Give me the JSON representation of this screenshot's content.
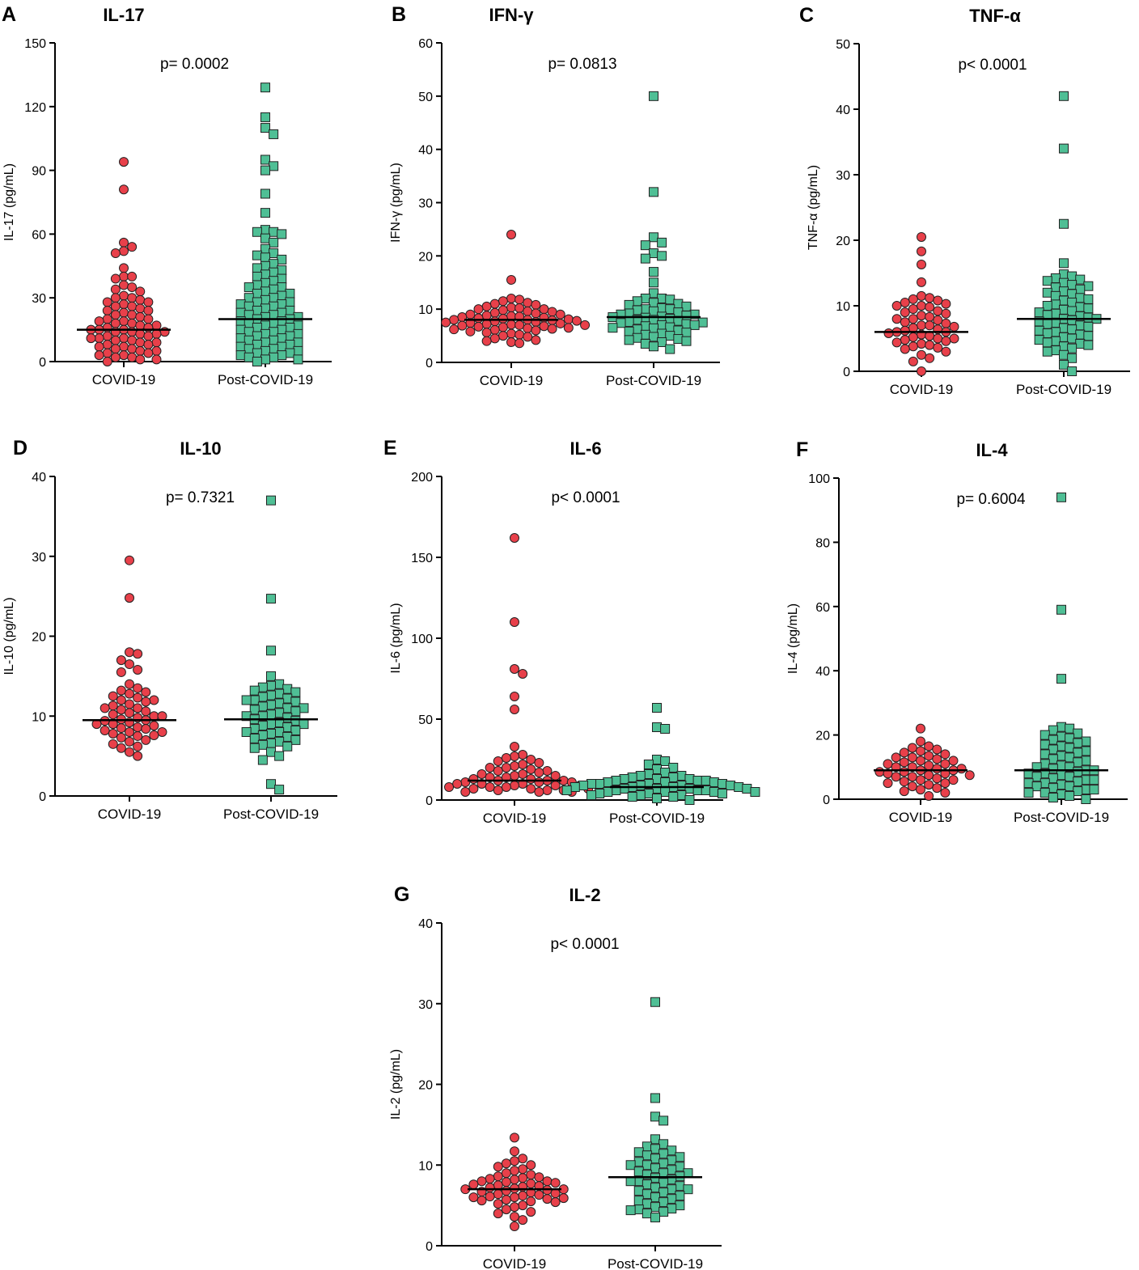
{
  "colors": {
    "covid_fill": "#e8404a",
    "postcovid_fill": "#4fbf95",
    "marker_stroke": "#222222",
    "axis": "#000000",
    "median_line": "#000000"
  },
  "markers": {
    "covid": "circle",
    "postcovid": "square"
  },
  "chart_data": [
    {
      "type": "scatter",
      "panel": "A",
      "title": "IL-17",
      "ylabel": "IL-17 (pg/mL)",
      "categories": [
        "COVID-19",
        "Post-COVID-19"
      ],
      "yticks": [
        "0",
        "30",
        "60",
        "90",
        "120",
        "150"
      ],
      "ylim": [
        0,
        150
      ],
      "p_value": "p= 0.0002",
      "medians": [
        15,
        20
      ],
      "series": [
        {
          "name": "COVID-19",
          "values": [
            94,
            81,
            56,
            54,
            52,
            51,
            44,
            40,
            40,
            39,
            36,
            35,
            34,
            33,
            31,
            30,
            30,
            29,
            28,
            28,
            27,
            26,
            26,
            25,
            24,
            24,
            23,
            22,
            22,
            21,
            20,
            20,
            19,
            19,
            18,
            18,
            17,
            17,
            16,
            16,
            15,
            15,
            15,
            14,
            14,
            14,
            13,
            13,
            12,
            12,
            11,
            11,
            11,
            10,
            10,
            9,
            9,
            8,
            8,
            7,
            7,
            6,
            6,
            5,
            5,
            4,
            4,
            3,
            3,
            2,
            2,
            1,
            1,
            0
          ]
        },
        {
          "name": "Post-COVID-19",
          "values": [
            129,
            115,
            110,
            107,
            95,
            92,
            90,
            79,
            70,
            62,
            61,
            61,
            60,
            58,
            56,
            53,
            51,
            50,
            49,
            48,
            46,
            45,
            44,
            43,
            42,
            41,
            40,
            39,
            38,
            37,
            36,
            35,
            35,
            34,
            33,
            32,
            32,
            31,
            30,
            30,
            29,
            28,
            28,
            27,
            27,
            26,
            26,
            25,
            24,
            24,
            23,
            23,
            22,
            22,
            21,
            21,
            20,
            20,
            19,
            19,
            18,
            18,
            17,
            17,
            16,
            16,
            15,
            15,
            14,
            14,
            13,
            13,
            12,
            12,
            11,
            11,
            10,
            10,
            9,
            9,
            8,
            8,
            7,
            7,
            6,
            6,
            5,
            5,
            4,
            4,
            3,
            3,
            2,
            2,
            1,
            1,
            0
          ]
        }
      ]
    },
    {
      "type": "scatter",
      "panel": "B",
      "title": "IFN-γ",
      "ylabel": "IFN-γ (pg/mL)",
      "categories": [
        "COVID-19",
        "Post-COVID-19"
      ],
      "yticks": [
        "0",
        "10",
        "20",
        "30",
        "40",
        "50",
        "60"
      ],
      "ylim": [
        0,
        60
      ],
      "p_value": "p= 0.0813",
      "medians": [
        8,
        8.5
      ],
      "series": [
        {
          "name": "COVID-19",
          "values": [
            24,
            15.5,
            12,
            11.8,
            11.5,
            11.2,
            11,
            10.8,
            10.5,
            10.3,
            10.2,
            10,
            10,
            9.8,
            9.6,
            9.5,
            9.3,
            9.2,
            9,
            9,
            8.8,
            8.7,
            8.6,
            8.5,
            8.4,
            8.3,
            8.2,
            8.1,
            8,
            8,
            7.9,
            7.8,
            7.7,
            7.6,
            7.5,
            7.4,
            7.3,
            7.2,
            7.1,
            7,
            7,
            6.9,
            6.8,
            6.7,
            6.6,
            6.5,
            6.4,
            6.3,
            6.2,
            6.1,
            6,
            5.8,
            5.6,
            5.4,
            5.2,
            5,
            4.8,
            4.5,
            4.2,
            4,
            3.8,
            3.6
          ]
        },
        {
          "name": "Post-COVID-19",
          "values": [
            50,
            32,
            23.5,
            22.5,
            22,
            20.5,
            20,
            19.5,
            17,
            15,
            13,
            12,
            12,
            11.8,
            11.5,
            11.2,
            11,
            10.8,
            10.5,
            10.2,
            10,
            10,
            9.8,
            9.6,
            9.4,
            9.2,
            9,
            9,
            8.8,
            8.6,
            8.5,
            8.4,
            8.2,
            8,
            8,
            7.8,
            7.6,
            7.5,
            7.4,
            7.2,
            7,
            7,
            6.8,
            6.6,
            6.5,
            6.4,
            6.2,
            6,
            5.8,
            5.6,
            5.4,
            5.2,
            5,
            4.8,
            4.6,
            4.4,
            4.2,
            4,
            3.8,
            3.5,
            3,
            2.5
          ]
        }
      ]
    },
    {
      "type": "scatter",
      "panel": "C",
      "title": "TNF-α",
      "ylabel": "TNF-α (pg/mL)",
      "categories": [
        "COVID-19",
        "Post-COVID-19"
      ],
      "yticks": [
        "0",
        "10",
        "20",
        "30",
        "40",
        "50"
      ],
      "ylim": [
        0,
        50
      ],
      "p_value": "p< 0.0001",
      "medians": [
        6,
        8
      ],
      "series": [
        {
          "name": "COVID-19",
          "values": [
            20.5,
            18.3,
            16.3,
            13.6,
            11.5,
            11.2,
            11,
            10.8,
            10.5,
            10.3,
            10,
            10,
            9.8,
            9.5,
            9.2,
            9,
            8.8,
            8.5,
            8.3,
            8,
            8,
            7.8,
            7.5,
            7.3,
            7,
            7,
            6.8,
            6.6,
            6.4,
            6.2,
            6,
            6,
            5.8,
            5.6,
            5.4,
            5.2,
            5,
            5,
            4.8,
            4.6,
            4.4,
            4.2,
            4,
            3.8,
            3.6,
            3.4,
            3,
            2.5,
            2,
            1.5,
            0
          ]
        },
        {
          "name": "Post-COVID-19",
          "values": [
            42,
            34,
            22.5,
            16.5,
            14.8,
            14.5,
            14.2,
            14,
            13.8,
            13.5,
            13.2,
            13,
            12.8,
            12.5,
            12.2,
            12,
            11.8,
            11.5,
            11.2,
            11,
            10.8,
            10.5,
            10.2,
            10,
            9.8,
            9.6,
            9.4,
            9.2,
            9,
            8.8,
            8.6,
            8.4,
            8.2,
            8,
            8,
            7.8,
            7.6,
            7.4,
            7.2,
            7,
            6.8,
            6.6,
            6.4,
            6.2,
            6,
            5.8,
            5.6,
            5.4,
            5.2,
            5,
            4.8,
            4.6,
            4.4,
            4.2,
            4,
            3.8,
            3.5,
            3.2,
            3,
            2.5,
            2,
            1,
            0
          ]
        }
      ]
    },
    {
      "type": "scatter",
      "panel": "D",
      "title": "IL-10",
      "ylabel": "IL-10 (pg/mL)",
      "categories": [
        "COVID-19",
        "Post-COVID-19"
      ],
      "yticks": [
        "0",
        "10",
        "20",
        "30",
        "40"
      ],
      "ylim": [
        0,
        40
      ],
      "p_value": "p= 0.7321",
      "medians": [
        9.5,
        9.6
      ],
      "series": [
        {
          "name": "COVID-19",
          "values": [
            29.5,
            24.8,
            18,
            17.8,
            17,
            16.5,
            15.8,
            15.5,
            14,
            13.5,
            13.2,
            13,
            12.8,
            12.5,
            12.3,
            12,
            12,
            11.8,
            11.5,
            11.3,
            11,
            11,
            10.8,
            10.6,
            10.4,
            10.2,
            10,
            10,
            9.8,
            9.6,
            9.5,
            9.4,
            9.2,
            9,
            9,
            8.8,
            8.6,
            8.5,
            8.4,
            8.2,
            8,
            8,
            7.8,
            7.6,
            7.5,
            7.3,
            7,
            6.8,
            6.5,
            6.2,
            6,
            5.5,
            5
          ]
        },
        {
          "name": "Post-COVID-19",
          "values": [
            37,
            24.7,
            18.2,
            15,
            14,
            13.8,
            13.6,
            13.4,
            13.2,
            13,
            12.8,
            12.6,
            12.4,
            12.2,
            12,
            12,
            11.8,
            11.6,
            11.4,
            11.2,
            11,
            11,
            10.8,
            10.6,
            10.4,
            10.2,
            10,
            10,
            9.8,
            9.6,
            9.4,
            9.2,
            9,
            9,
            8.8,
            8.6,
            8.4,
            8.2,
            8,
            8,
            7.8,
            7.6,
            7.4,
            7.2,
            7,
            6.8,
            6.6,
            6.4,
            6.2,
            6,
            5.5,
            5,
            4.5,
            1.5,
            0.8
          ]
        }
      ]
    },
    {
      "type": "scatter",
      "panel": "E",
      "title": "IL-6",
      "ylabel": "IL-6 (pg/mL)",
      "categories": [
        "COVID-19",
        "Post-COVID-19"
      ],
      "yticks": [
        "0",
        "50",
        "100",
        "150",
        "200"
      ],
      "ylim": [
        0,
        200
      ],
      "p_value": "p< 0.0001",
      "medians": [
        12,
        8
      ],
      "series": [
        {
          "name": "COVID-19",
          "values": [
            162,
            110,
            81,
            78,
            64,
            56,
            33,
            28,
            27,
            26,
            25,
            24,
            23,
            22,
            21,
            20,
            20,
            19,
            18,
            18,
            17,
            16,
            16,
            15,
            15,
            14,
            14,
            13,
            13,
            12,
            12,
            12,
            11,
            11,
            11,
            10,
            10,
            10,
            9,
            9,
            9,
            8,
            8,
            8,
            7,
            7,
            7,
            6,
            6,
            6,
            5,
            5,
            5
          ]
        },
        {
          "name": "Post-COVID-19",
          "values": [
            57,
            45,
            44,
            25,
            24,
            22,
            20,
            19,
            17,
            16,
            15,
            15,
            14,
            14,
            13,
            13,
            13,
            12,
            12,
            12,
            11,
            11,
            11,
            10,
            10,
            10,
            10,
            9,
            9,
            9,
            9,
            8,
            8,
            8,
            8,
            7,
            7,
            7,
            7,
            6,
            6,
            6,
            6,
            5,
            5,
            5,
            5,
            4,
            4,
            4,
            3,
            3,
            3,
            2,
            2,
            1,
            0
          ]
        }
      ]
    },
    {
      "type": "scatter",
      "panel": "F",
      "title": "IL-4",
      "ylabel": "IL-4 (pg/mL)",
      "categories": [
        "COVID-19",
        "Post-COVID-19"
      ],
      "yticks": [
        "0",
        "20",
        "40",
        "60",
        "80",
        "100"
      ],
      "ylim": [
        0,
        100
      ],
      "p_value": "p= 0.6004",
      "medians": [
        9,
        9
      ],
      "series": [
        {
          "name": "COVID-19",
          "values": [
            22,
            18,
            16.5,
            16,
            15.5,
            15,
            14.5,
            14,
            13.5,
            13,
            13,
            12.5,
            12,
            12,
            11.5,
            11,
            11,
            10.5,
            10,
            10,
            9.5,
            9.5,
            9,
            9,
            8.5,
            8.5,
            8,
            8,
            7.5,
            7.5,
            7,
            7,
            6.5,
            6,
            6,
            5.5,
            5,
            5,
            4.5,
            4,
            3.5,
            3,
            2.5,
            2,
            1
          ]
        },
        {
          "name": "Post-COVID-19",
          "values": [
            94,
            59,
            37.5,
            22.5,
            22,
            21.5,
            20.5,
            20,
            19.5,
            19,
            18.5,
            18,
            17.5,
            17,
            16.5,
            16,
            15.5,
            15,
            14.5,
            14,
            13.5,
            13,
            12.5,
            12,
            11.5,
            11,
            10.5,
            10,
            10,
            9.5,
            9,
            9,
            8.5,
            8,
            8,
            7.5,
            7,
            7,
            6.5,
            6,
            6,
            5.5,
            5,
            5,
            4.5,
            4,
            4,
            3.5,
            3,
            3,
            2.5,
            2,
            2,
            1.5,
            1,
            0.5,
            0
          ]
        }
      ]
    },
    {
      "type": "scatter",
      "panel": "G",
      "title": "IL-2",
      "ylabel": "IL-2 (pg/mL)",
      "categories": [
        "COVID-19",
        "Post-COVID-19"
      ],
      "yticks": [
        "0",
        "10",
        "20",
        "30",
        "40"
      ],
      "ylim": [
        0,
        40
      ],
      "p_value": "p< 0.0001",
      "medians": [
        7,
        8.5
      ],
      "series": [
        {
          "name": "COVID-19",
          "values": [
            13.4,
            11.7,
            10.8,
            10.5,
            10.2,
            10,
            9.8,
            9.5,
            9.3,
            9,
            8.8,
            8.6,
            8.5,
            8.4,
            8.3,
            8.2,
            8,
            8,
            7.9,
            7.8,
            7.7,
            7.6,
            7.5,
            7.4,
            7.3,
            7.2,
            7.1,
            7,
            7,
            6.9,
            6.8,
            6.7,
            6.6,
            6.5,
            6.4,
            6.3,
            6.2,
            6.1,
            6,
            6,
            5.9,
            5.8,
            5.7,
            5.6,
            5.5,
            5.4,
            5.2,
            5,
            4.8,
            4.5,
            4.2,
            4,
            3.6,
            3.2,
            2.4
          ]
        },
        {
          "name": "Post-COVID-19",
          "values": [
            30.2,
            18.3,
            16,
            15.5,
            13.2,
            12.6,
            12.3,
            12,
            11.8,
            11.6,
            11.4,
            11.2,
            11,
            10.8,
            10.6,
            10.4,
            10.2,
            10,
            10,
            9.8,
            9.6,
            9.4,
            9.2,
            9,
            9,
            8.8,
            8.6,
            8.4,
            8.2,
            8,
            8,
            7.8,
            7.6,
            7.4,
            7.2,
            7,
            7,
            6.8,
            6.6,
            6.4,
            6.2,
            6,
            5.8,
            5.6,
            5.4,
            5.2,
            5,
            4.8,
            4.6,
            4.5,
            4.4,
            4.2,
            4,
            3.5
          ]
        }
      ]
    }
  ]
}
